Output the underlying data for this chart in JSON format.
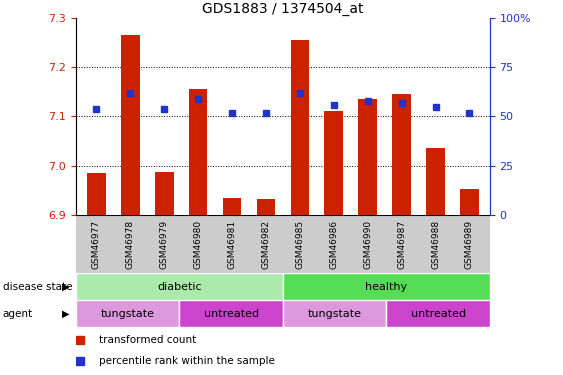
{
  "title": "GDS1883 / 1374504_at",
  "samples": [
    "GSM46977",
    "GSM46978",
    "GSM46979",
    "GSM46980",
    "GSM46981",
    "GSM46982",
    "GSM46985",
    "GSM46986",
    "GSM46990",
    "GSM46987",
    "GSM46988",
    "GSM46989"
  ],
  "transformed_count": [
    6.985,
    7.265,
    6.987,
    7.155,
    6.935,
    6.932,
    7.255,
    7.112,
    7.135,
    7.145,
    7.035,
    6.953
  ],
  "percentile_rank": [
    54,
    62,
    54,
    59,
    52,
    52,
    62,
    56,
    58,
    57,
    55,
    52
  ],
  "ylim_left": [
    6.9,
    7.3
  ],
  "ylim_right": [
    0,
    100
  ],
  "yticks_left": [
    6.9,
    7.0,
    7.1,
    7.2,
    7.3
  ],
  "yticks_right": [
    0,
    25,
    50,
    75,
    100
  ],
  "bar_color": "#cc2200",
  "dot_color": "#2233cc",
  "bar_bottom": 6.9,
  "plot_bg_color": "#ffffff",
  "disease_state_groups": [
    {
      "label": "diabetic",
      "start": 0,
      "end": 6,
      "color": "#aaeaaa"
    },
    {
      "label": "healthy",
      "start": 6,
      "end": 12,
      "color": "#55dd55"
    }
  ],
  "agent_groups": [
    {
      "label": "tungstate",
      "start": 0,
      "end": 3,
      "color": "#dd99dd"
    },
    {
      "label": "untreated",
      "start": 3,
      "end": 6,
      "color": "#cc44cc"
    },
    {
      "label": "tungstate",
      "start": 6,
      "end": 9,
      "color": "#dd99dd"
    },
    {
      "label": "untreated",
      "start": 9,
      "end": 12,
      "color": "#cc44cc"
    }
  ],
  "legend_items": [
    {
      "label": "transformed count",
      "color": "#cc2200"
    },
    {
      "label": "percentile rank within the sample",
      "color": "#2233cc"
    }
  ],
  "axis_color_left": "#cc2200",
  "axis_color_right": "#2233cc",
  "grid_color": "black",
  "label_band_color": "#cccccc",
  "background_color": "#ffffff"
}
